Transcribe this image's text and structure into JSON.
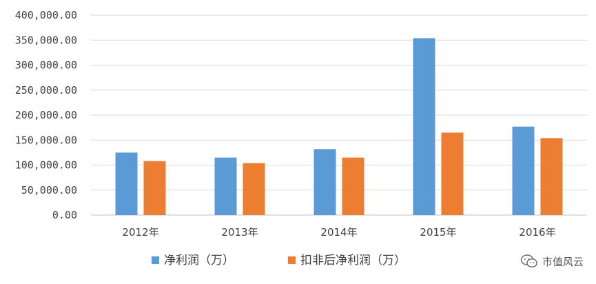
{
  "chart_data": {
    "type": "bar",
    "categories": [
      "2012年",
      "2013年",
      "2014年",
      "2015年",
      "2016年"
    ],
    "series": [
      {
        "name": "净利润（万）",
        "color": "#5b9bd5",
        "values": [
          125000,
          115000,
          132000,
          354000,
          177000
        ]
      },
      {
        "name": "扣非后净利润（万）",
        "color": "#ed7d31",
        "values": [
          108000,
          104000,
          115000,
          165000,
          154000
        ]
      }
    ],
    "ylim": [
      0,
      400000
    ],
    "yticks": [
      "0.00",
      "50,000.00",
      "100,000.00",
      "150,000.00",
      "200,000.00",
      "250,000.00",
      "300,000.00",
      "350,000.00",
      "400,000.00"
    ],
    "grid": true,
    "legend": "bottom"
  },
  "watermark": {
    "text": "市值风云",
    "icon": "wechat-icon"
  }
}
